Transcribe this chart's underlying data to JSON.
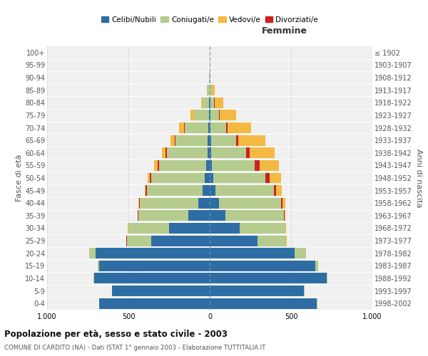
{
  "age_groups": [
    "0-4",
    "5-9",
    "10-14",
    "15-19",
    "20-24",
    "25-29",
    "30-34",
    "35-39",
    "40-44",
    "45-49",
    "50-54",
    "55-59",
    "60-64",
    "65-69",
    "70-74",
    "75-79",
    "80-84",
    "85-89",
    "90-94",
    "95-99",
    "100+"
  ],
  "birth_years": [
    "1998-2002",
    "1993-1997",
    "1988-1992",
    "1983-1987",
    "1978-1982",
    "1973-1977",
    "1968-1972",
    "1963-1967",
    "1958-1962",
    "1953-1957",
    "1948-1952",
    "1943-1947",
    "1938-1942",
    "1933-1937",
    "1928-1932",
    "1923-1927",
    "1918-1922",
    "1913-1917",
    "1908-1912",
    "1903-1907",
    "≤ 1902"
  ],
  "males": {
    "celibi": [
      680,
      600,
      710,
      680,
      700,
      360,
      250,
      130,
      70,
      45,
      30,
      20,
      15,
      12,
      8,
      5,
      3,
      2,
      0,
      0,
      0
    ],
    "coniugati": [
      1,
      2,
      5,
      10,
      40,
      150,
      250,
      310,
      360,
      340,
      330,
      290,
      250,
      200,
      145,
      90,
      40,
      15,
      3,
      0,
      0
    ],
    "vedovi": [
      0,
      0,
      0,
      0,
      2,
      1,
      1,
      2,
      3,
      5,
      10,
      18,
      20,
      25,
      30,
      20,
      8,
      2,
      0,
      0,
      0
    ],
    "divorziati": [
      0,
      0,
      0,
      0,
      1,
      1,
      2,
      3,
      5,
      8,
      10,
      12,
      8,
      5,
      5,
      2,
      1,
      0,
      0,
      0,
      0
    ]
  },
  "females": {
    "nubili": [
      660,
      580,
      720,
      650,
      520,
      295,
      185,
      95,
      55,
      35,
      22,
      12,
      10,
      8,
      6,
      4,
      3,
      2,
      1,
      0,
      0
    ],
    "coniugate": [
      1,
      2,
      5,
      18,
      70,
      175,
      280,
      360,
      385,
      360,
      320,
      265,
      215,
      155,
      95,
      55,
      25,
      10,
      2,
      0,
      0
    ],
    "vedove": [
      0,
      0,
      0,
      0,
      2,
      2,
      3,
      8,
      15,
      35,
      70,
      120,
      155,
      165,
      145,
      100,
      55,
      18,
      2,
      0,
      0
    ],
    "divorziate": [
      0,
      0,
      0,
      0,
      1,
      1,
      2,
      4,
      8,
      15,
      25,
      30,
      20,
      12,
      8,
      3,
      2,
      1,
      0,
      0,
      0
    ]
  },
  "colors": {
    "celibi_nubili": "#2e6da4",
    "coniugati_e": "#b5cc8e",
    "vedovi_e": "#f4b942",
    "divorziati_e": "#cc2222"
  },
  "title1": "Popolazione per età, sesso e stato civile - 2003",
  "subtitle": "COMUNE DI CARDITO (NA) - Dati ISTAT 1° gennaio 2003 - Elaborazione TUTTITALIA.IT",
  "xlabel_right": "Femmine",
  "ylabel_left": "Fasce di età",
  "ylabel_right": "Anni di nascita",
  "xlim": 1000,
  "bg_color": "#ffffff",
  "plot_bg": "#f0f0f0"
}
